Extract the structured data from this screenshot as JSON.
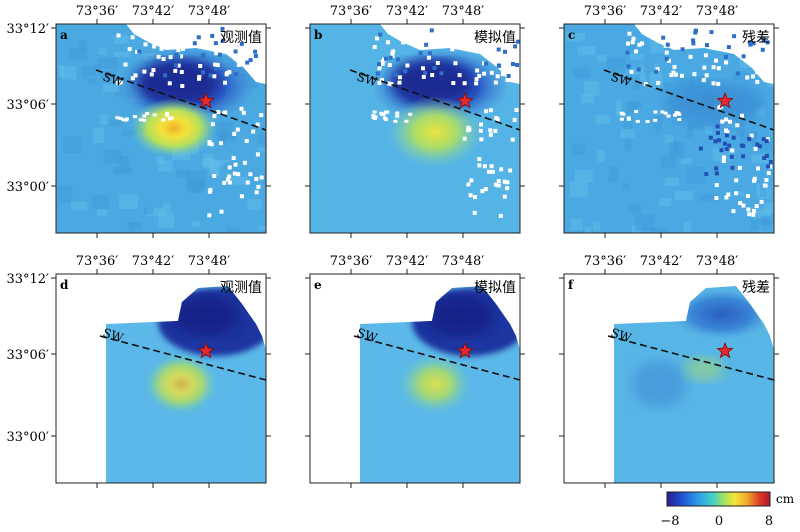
{
  "figure": {
    "lon_ticks": [
      "73°36′",
      "73°42′",
      "73°48′"
    ],
    "lat_ticks": [
      "33°12′",
      "33°06′",
      "33°00′"
    ],
    "fault_label": "SW",
    "panels": [
      {
        "letter": "a",
        "title": "观测值",
        "kind": "observed",
        "row": 1
      },
      {
        "letter": "b",
        "title": "模拟值",
        "kind": "modeled",
        "row": 1
      },
      {
        "letter": "c",
        "title": "残差",
        "kind": "residual",
        "row": 1
      },
      {
        "letter": "d",
        "title": "观测值",
        "kind": "observed",
        "row": 2
      },
      {
        "letter": "e",
        "title": "模拟值",
        "kind": "modeled",
        "row": 2
      },
      {
        "letter": "f",
        "title": "残差",
        "kind": "residual",
        "row": 2
      }
    ]
  },
  "colorbar": {
    "unit": "cm",
    "tick_labels": [
      "−8",
      "0",
      "8"
    ],
    "range": [
      -8,
      8
    ],
    "colors": [
      "#2a1e8c",
      "#1d4fd3",
      "#2e9be8",
      "#45d3c6",
      "#a8e25a",
      "#f5e43a",
      "#f0a52c",
      "#de3a24",
      "#b0162b"
    ]
  }
}
